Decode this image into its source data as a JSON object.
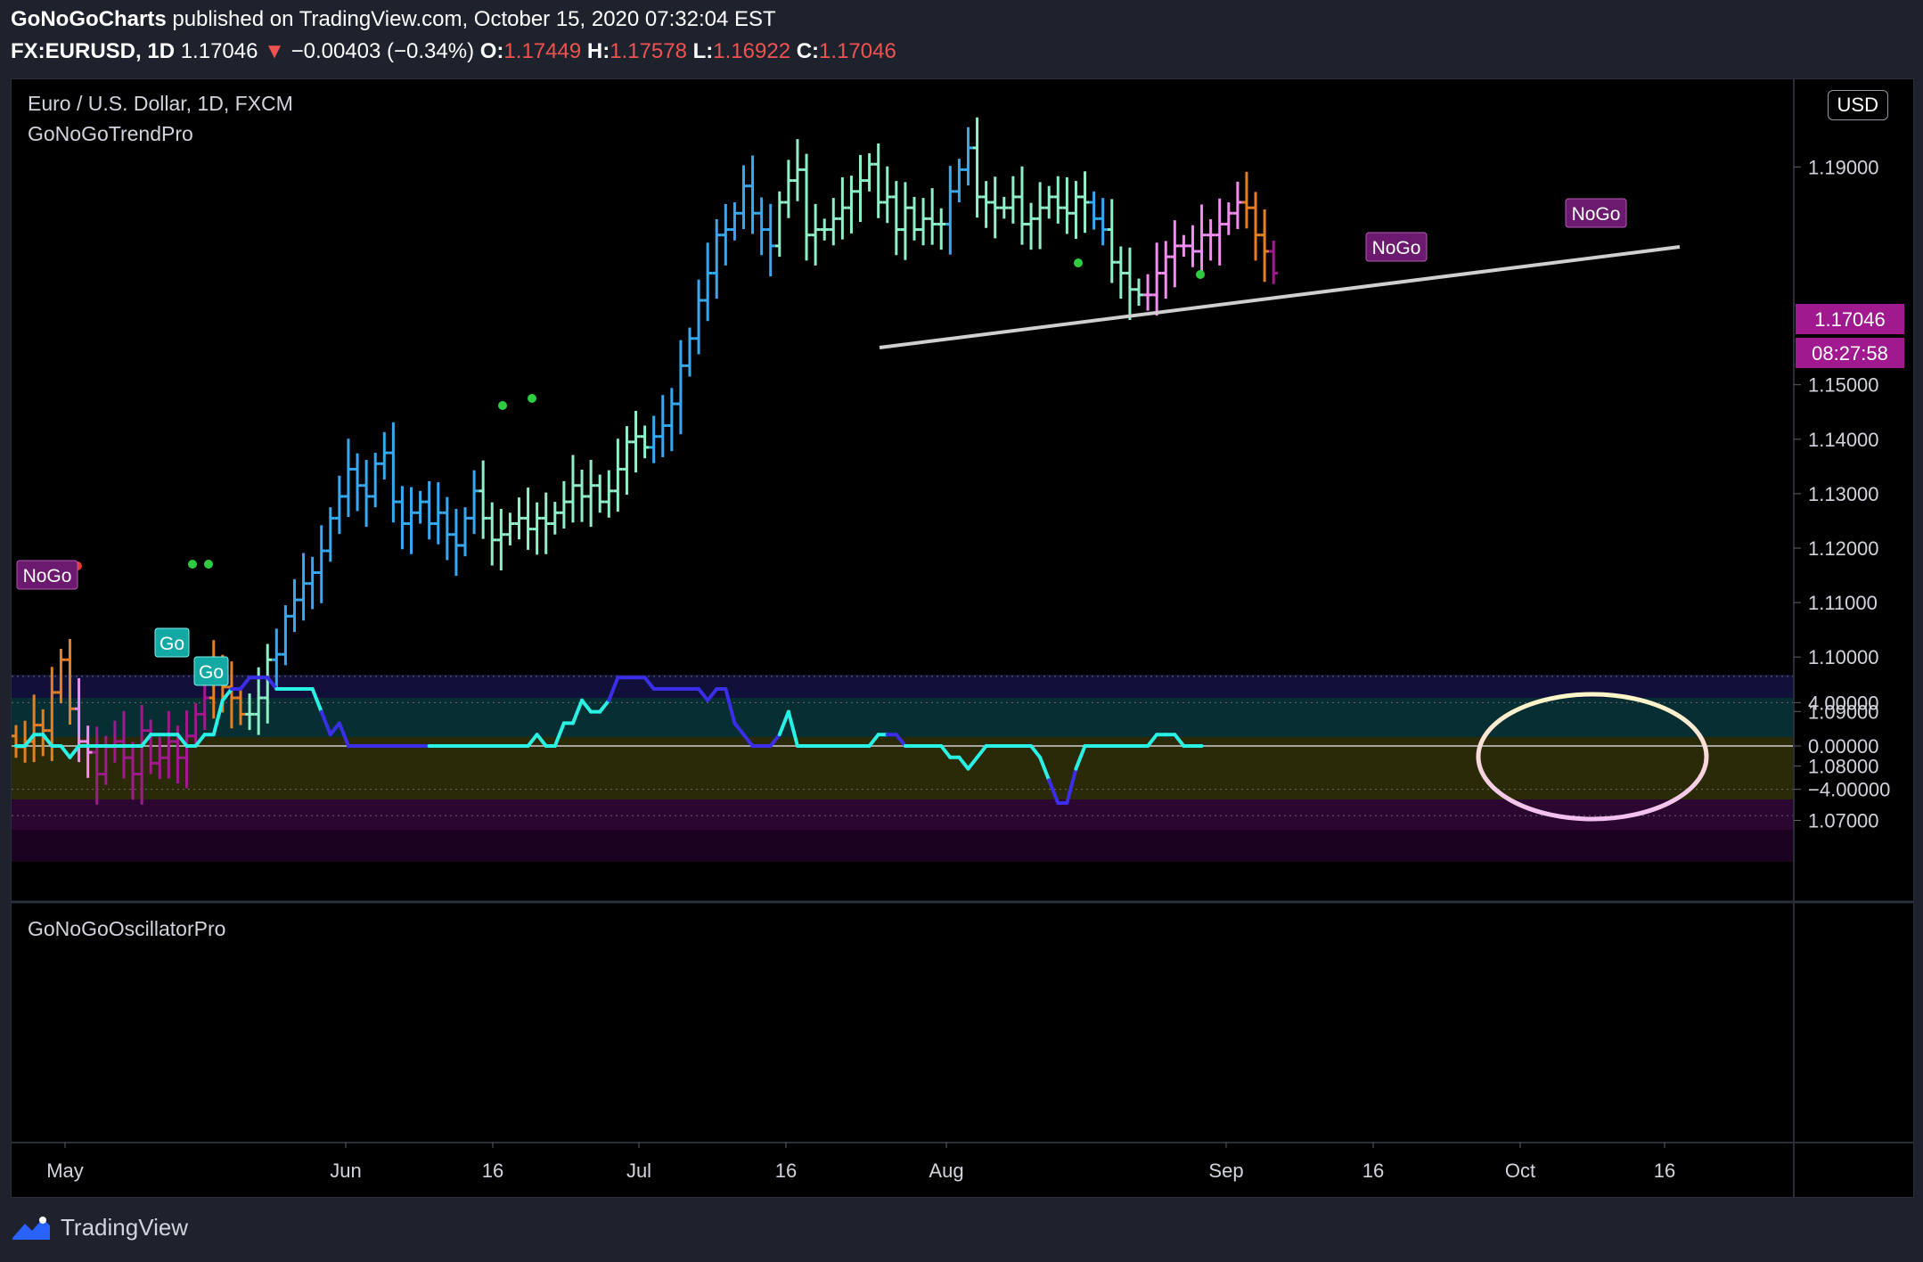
{
  "header": {
    "author": "GoNoGoCharts",
    "published_text": "published on TradingView.com, October 15, 2020 07:32:04 EST",
    "symbol_tf": "FX:EURUSD, 1D",
    "last_price": "1.17046",
    "change_arrow": "▼",
    "change": "−0.00403 (−0.34%)",
    "o_label": "O:",
    "o_value": "1.17449",
    "h_label": "H:",
    "h_value": "1.17578",
    "l_label": "L:",
    "l_value": "1.16922",
    "c_label": "C:",
    "c_value": "1.17046"
  },
  "main_pane": {
    "title": "Euro / U.S. Dollar, 1D, FXCM",
    "indicator": "GoNoGoTrendPro",
    "currency_button": "USD",
    "price_tag": "1.17046",
    "countdown_tag": "08:27:58"
  },
  "osc_pane": {
    "indicator": "GoNoGoOscillatorPro"
  },
  "footer": {
    "brand": "TradingView"
  },
  "colors": {
    "background": "#000000",
    "frame": "#1e222d",
    "go_strong": "#36a9f2",
    "go_weak": "#8ff0c8",
    "nogo_weak": "#f28cf0",
    "nogo_strong": "#a0198f",
    "transition": "#e67e22",
    "osc_line": "#29f2e5",
    "osc_blue": "#3b2ee8",
    "trendline": "#cfcfcf",
    "label_purple": "#6c1a6f"
  },
  "chart_data": [
    {
      "type": "ohlc",
      "title": "Euro / U.S. Dollar, 1D, FXCM",
      "x_ticks": [
        "May",
        "Jun",
        "16",
        "Jul",
        "16",
        "Aug",
        "Sep",
        "16",
        "Oct",
        "16"
      ],
      "y_ticks": [
        "1.07000",
        "1.08000",
        "1.09000",
        "1.10000",
        "1.11000",
        "1.12000",
        "1.13000",
        "1.14000",
        "1.15000",
        "1.19000"
      ],
      "ylim": [
        1.0645,
        1.2095
      ],
      "series": [
        {
          "values": [
            1.0835,
            1.0845,
            1.0875,
            1.0865,
            1.0935,
            1.0995,
            1.0905,
            1.0845,
            1.0825,
            1.0785,
            1.0835,
            1.0845,
            1.0815,
            1.0785,
            1.0865,
            1.0805,
            1.0815,
            1.0845,
            1.0815,
            1.0855,
            1.0895,
            1.0925,
            1.0975,
            1.0945,
            1.0925,
            1.0895,
            1.0895,
            1.0925,
            1.0995,
            1.1005,
            1.1075,
            1.1105,
            1.1135,
            1.1155,
            1.1195,
            1.1255,
            1.1295,
            1.1345,
            1.1315,
            1.1295,
            1.1355,
            1.1375,
            1.1285,
            1.1245,
            1.1265,
            1.1285,
            1.1245,
            1.1265,
            1.1225,
            1.1205,
            1.1255,
            1.1305,
            1.1255,
            1.1215,
            1.1225,
            1.1245,
            1.1255,
            1.1235,
            1.1255,
            1.1245,
            1.1265,
            1.1285,
            1.1315,
            1.1295,
            1.1315,
            1.1285,
            1.1305,
            1.1345,
            1.1395,
            1.1405,
            1.1385,
            1.1405,
            1.1425,
            1.1465,
            1.1535,
            1.1585,
            1.1655,
            1.1705,
            1.1775,
            1.1785,
            1.1815,
            1.1865,
            1.1815,
            1.1785,
            1.1755,
            1.1835,
            1.1875,
            1.1895,
            1.1775,
            1.1785,
            1.1785,
            1.1805,
            1.1825,
            1.1855,
            1.1875,
            1.1905,
            1.1835,
            1.1845,
            1.1785,
            1.1825,
            1.1785,
            1.1805,
            1.1795,
            1.1795,
            1.1855,
            1.1895,
            1.1935,
            1.1845,
            1.1835,
            1.1825,
            1.1825,
            1.1845,
            1.1795,
            1.1805,
            1.1825,
            1.1845,
            1.1825,
            1.1815,
            1.1845,
            1.1835,
            1.1805,
            1.1785,
            1.1725,
            1.1705,
            1.1675,
            1.1665,
            1.1665,
            1.1705,
            1.1735,
            1.1755,
            1.1755,
            1.1745,
            1.1775,
            1.1775,
            1.1795,
            1.1815,
            1.1835,
            1.1825,
            1.1775,
            1.1745,
            1.1705
          ]
        }
      ],
      "annotations": [
        "NoGo",
        "Go",
        "Go",
        "NoGo",
        "NoGo"
      ]
    },
    {
      "type": "line",
      "title": "GoNoGoOscillatorPro",
      "y_ticks": [
        "4.00000",
        "0.00000",
        "−4.00000"
      ],
      "ylim": [
        -7.5,
        7.5
      ],
      "series": [
        {
          "values": [
            0,
            0,
            1,
            1,
            0,
            0,
            -1,
            0,
            0,
            0,
            0,
            0,
            0,
            0,
            0,
            1,
            1,
            1,
            1,
            0,
            0,
            1,
            1,
            4,
            5,
            5,
            6,
            6,
            6,
            5,
            5,
            5,
            5,
            5,
            3,
            1,
            2,
            0,
            0,
            0,
            0,
            0,
            0,
            0,
            0,
            0,
            0,
            0,
            0,
            0,
            0,
            0,
            0,
            0,
            0,
            0,
            0,
            0,
            1,
            0,
            0,
            2,
            2,
            4,
            3,
            3,
            4,
            6,
            6,
            6,
            6,
            5,
            5,
            5,
            5,
            5,
            5,
            4,
            5,
            5,
            2,
            1,
            0,
            0,
            0,
            1,
            3,
            0,
            0,
            0,
            0,
            0,
            0,
            0,
            0,
            0,
            1,
            1,
            1,
            0,
            0,
            0,
            0,
            0,
            -1,
            -1,
            -2,
            -1,
            0,
            0,
            0,
            0,
            0,
            0,
            -1,
            -3,
            -5,
            -5,
            -2,
            0,
            0,
            0,
            0,
            0,
            0,
            0,
            0,
            1,
            1,
            1,
            0,
            0,
            0
          ]
        }
      ]
    }
  ]
}
